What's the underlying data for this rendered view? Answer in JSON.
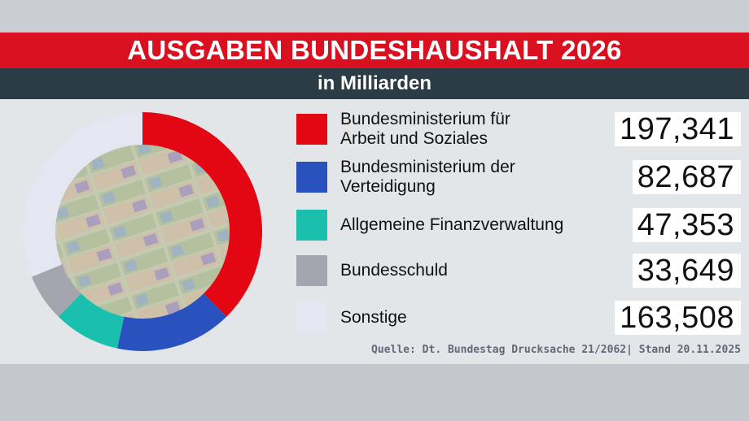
{
  "title": "AUSGABEN BUNDESHAUSHALT 2026",
  "subtitle": "in Milliarden",
  "source": "Quelle: Dt. Bundestag Drucksache 21/2062| Stand 20.11.2025",
  "chart_data": {
    "type": "pie",
    "title": "AUSGABEN BUNDESHAUSHALT 2026",
    "subtitle": "in Milliarden",
    "categories": [
      "Bundesministerium für Arbeit und Soziales",
      "Bundesministerium der Verteidigung",
      "Allgemeine Finanzverwaltung",
      "Bundesschuld",
      "Sonstige"
    ],
    "label_lines": [
      [
        "Bundesministerium für",
        "Arbeit und Soziales"
      ],
      [
        "Bundesministerium der",
        "Verteidigung"
      ],
      [
        "Allgemeine Finanzverwaltung"
      ],
      [
        "Bundesschuld"
      ],
      [
        "Sonstige"
      ]
    ],
    "values": [
      197.341,
      82.687,
      47.353,
      33.649,
      163.508
    ],
    "value_labels": [
      "197,341",
      "82,687",
      "47,353",
      "33,649",
      "163,508"
    ],
    "colors": [
      "#e30613",
      "#2a52be",
      "#1bbfae",
      "#a3a6ad",
      "#e4e6f2"
    ],
    "legend": "right"
  }
}
